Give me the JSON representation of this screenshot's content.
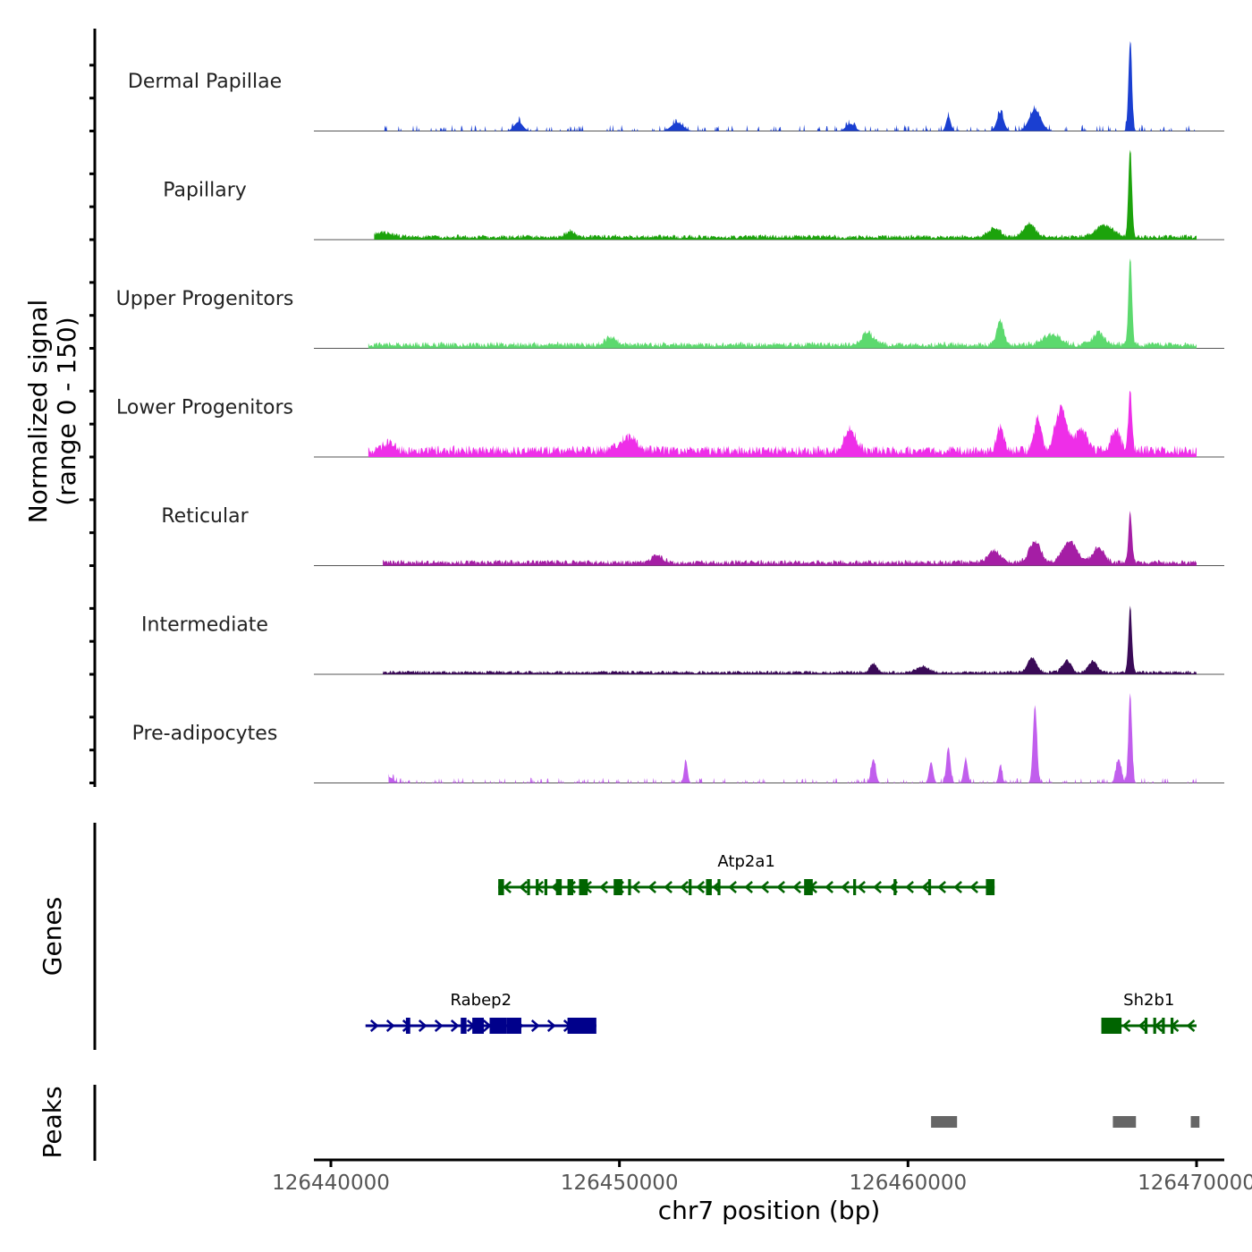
{
  "chart_data": {
    "type": "area",
    "title": "",
    "chromosome": "chr7",
    "xlabel": "chr7 position (bp)",
    "ylabel_line1": "Normalized signal",
    "ylabel_line2": "(range 0 - 150)",
    "xlim": [
      126440000,
      126470000
    ],
    "ylim": [
      0,
      150
    ],
    "x_ticks": [
      126440000,
      126450000,
      126460000,
      126470000
    ],
    "x_tick_labels": [
      "126440000",
      "126450000",
      "126460000",
      "126470000"
    ],
    "signal_start": 126440500,
    "signal_end": 126470000,
    "tracks": [
      {
        "name": "Dermal Papillae",
        "color": "#1a3fd1",
        "start": 126441800,
        "background": 6,
        "noise": 0.7,
        "sparse": true,
        "peaks": [
          [
            126467700,
            150,
            60
          ],
          [
            126464400,
            35,
            200
          ],
          [
            126463200,
            30,
            120
          ],
          [
            126461400,
            25,
            80
          ],
          [
            126446500,
            15,
            150
          ],
          [
            126452000,
            14,
            200
          ],
          [
            126458000,
            12,
            150
          ]
        ]
      },
      {
        "name": "Papillary",
        "color": "#1ca30c",
        "start": 126441500,
        "background": 7,
        "noise": 0.6,
        "sparse": false,
        "peaks": [
          [
            126467700,
            150,
            60
          ],
          [
            126464200,
            22,
            200
          ],
          [
            126466800,
            20,
            300
          ],
          [
            126463000,
            15,
            200
          ],
          [
            126441800,
            8,
            300
          ],
          [
            126448300,
            10,
            150
          ]
        ]
      },
      {
        "name": "Upper Progenitors",
        "color": "#5cd96e",
        "start": 126441300,
        "background": 9,
        "noise": 0.6,
        "sparse": false,
        "peaks": [
          [
            126467700,
            150,
            60
          ],
          [
            126463200,
            40,
            120
          ],
          [
            126458600,
            20,
            200
          ],
          [
            126465000,
            18,
            300
          ],
          [
            126466600,
            20,
            200
          ],
          [
            126449700,
            12,
            200
          ]
        ]
      },
      {
        "name": "Lower Progenitors",
        "color": "#ee2ee8",
        "start": 126441300,
        "background": 14,
        "noise": 0.7,
        "sparse": false,
        "peaks": [
          [
            126467700,
            105,
            60
          ],
          [
            126465300,
            70,
            200
          ],
          [
            126464500,
            55,
            120
          ],
          [
            126463200,
            40,
            120
          ],
          [
            126466000,
            35,
            200
          ],
          [
            126467200,
            35,
            150
          ],
          [
            126458000,
            35,
            200
          ],
          [
            126450300,
            22,
            300
          ],
          [
            126442000,
            12,
            200
          ]
        ]
      },
      {
        "name": "Reticular",
        "color": "#a51ea5",
        "start": 126441800,
        "background": 8,
        "noise": 0.6,
        "sparse": false,
        "peaks": [
          [
            126467700,
            85,
            60
          ],
          [
            126465600,
            35,
            250
          ],
          [
            126464400,
            35,
            200
          ],
          [
            126466600,
            25,
            200
          ],
          [
            126463000,
            20,
            200
          ],
          [
            126451300,
            12,
            200
          ]
        ]
      },
      {
        "name": "Intermediate",
        "color": "#3a0a57",
        "start": 126441800,
        "background": 5,
        "noise": 0.6,
        "sparse": false,
        "peaks": [
          [
            126467700,
            110,
            60
          ],
          [
            126464300,
            25,
            150
          ],
          [
            126465500,
            20,
            150
          ],
          [
            126466400,
            18,
            150
          ],
          [
            126458800,
            15,
            120
          ],
          [
            126460500,
            10,
            200
          ]
        ]
      },
      {
        "name": "Pre-adipocytes",
        "color": "#c15eed",
        "start": 126442000,
        "background": 5,
        "noise": 0.8,
        "sparse": true,
        "peaks": [
          [
            126467700,
            150,
            60
          ],
          [
            126464400,
            130,
            70
          ],
          [
            126461400,
            60,
            70
          ],
          [
            126462000,
            40,
            70
          ],
          [
            126458800,
            40,
            80
          ],
          [
            126460800,
            35,
            70
          ],
          [
            126463200,
            30,
            60
          ],
          [
            126452300,
            38,
            60
          ],
          [
            126467300,
            40,
            90
          ],
          [
            126442000,
            10,
            150
          ]
        ]
      }
    ],
    "gene_track_label": "Genes",
    "genes": [
      {
        "name": "Atp2a1",
        "strand": "-",
        "color": "#006400",
        "start": 126445800,
        "end": 126463000,
        "row": 0,
        "exons": [
          [
            126445800,
            126446000
          ],
          [
            126446800,
            126446900
          ],
          [
            126447100,
            126447200
          ],
          [
            126447400,
            126447500
          ],
          [
            126447800,
            126448000
          ],
          [
            126448200,
            126448400
          ],
          [
            126448600,
            126448900
          ],
          [
            126449800,
            126450100
          ],
          [
            126450300,
            126450400
          ],
          [
            126452400,
            126452500
          ],
          [
            126453000,
            126453200
          ],
          [
            126453400,
            126453500
          ],
          [
            126456400,
            126456700
          ],
          [
            126458100,
            126458200
          ],
          [
            126459500,
            126459600
          ],
          [
            126460700,
            126460800
          ],
          [
            126462700,
            126463000
          ]
        ]
      },
      {
        "name": "Rabep2",
        "strand": "+",
        "color": "#00008b",
        "start": 126441200,
        "end": 126449200,
        "row": 1,
        "exons": [
          [
            126442600,
            126442750
          ],
          [
            126444500,
            126444700
          ],
          [
            126444900,
            126445300
          ],
          [
            126445500,
            126446100
          ],
          [
            126446100,
            126446600
          ],
          [
            126448200,
            126449200
          ]
        ]
      },
      {
        "name": "Sh2b1",
        "strand": "-",
        "color": "#006400",
        "start": 126466700,
        "end": 126470000,
        "row": 1,
        "exons": [
          [
            126466700,
            126467400
          ],
          [
            126468200,
            126468300
          ],
          [
            126468500,
            126468600
          ],
          [
            126468800,
            126468900
          ],
          [
            126469100,
            126469200
          ]
        ]
      }
    ],
    "peak_track_label": "Peaks",
    "peak_color": "#666666",
    "peaks": [
      [
        126460800,
        126461700
      ],
      [
        126467100,
        126467900
      ],
      [
        126469800,
        126470100
      ]
    ]
  }
}
